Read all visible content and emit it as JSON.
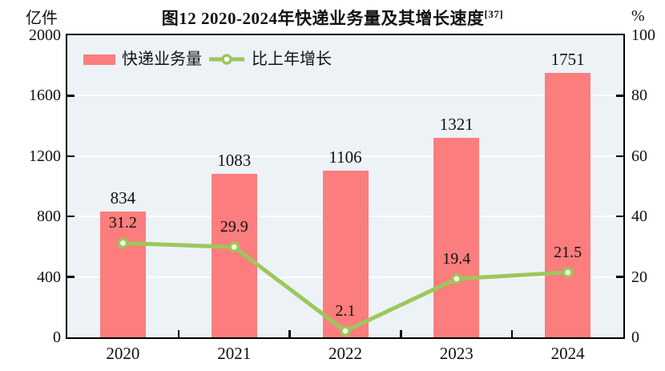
{
  "title": {
    "text": "图12  2020-2024年快递业务量及其增长速度",
    "superscript": "[37]"
  },
  "legend": {
    "bar_label": "快递业务量",
    "line_label": "比上年增长"
  },
  "chart_data": {
    "type": "bar+line combo",
    "categories": [
      "2020",
      "2021",
      "2022",
      "2023",
      "2024"
    ],
    "series": [
      {
        "name": "快递业务量",
        "type": "bar",
        "axis": "left",
        "values": [
          834,
          1083,
          1106,
          1321,
          1751
        ],
        "color": "#FB7D7D"
      },
      {
        "name": "比上年增长",
        "type": "line",
        "axis": "right",
        "values": [
          31.2,
          29.9,
          2.1,
          19.4,
          21.5
        ],
        "color": "#9DC75B",
        "marker": "circle-white-fill-green-ring"
      }
    ],
    "left_axis": {
      "unit": "亿件",
      "min": 0,
      "max": 2000,
      "ticks": [
        0,
        400,
        800,
        1200,
        1600,
        2000
      ]
    },
    "right_axis": {
      "unit": "%",
      "min": 0,
      "max": 100,
      "ticks": [
        0,
        20,
        40,
        60,
        80,
        100
      ]
    },
    "title": "图12  2020-2024年快递业务量及其增长速度[37]",
    "grid": true,
    "gridline_style": "horizontal white lines on light-blue plot background",
    "legend_position": "top-left inside plot"
  },
  "colors": {
    "bar": "#FB7D7D",
    "line": "#9DC75B",
    "marker_fill": "#FFFFFF",
    "plot_background": "#EDF2F7",
    "gridline": "#FFFFFF",
    "axis": "#000000",
    "text": "#111111"
  }
}
